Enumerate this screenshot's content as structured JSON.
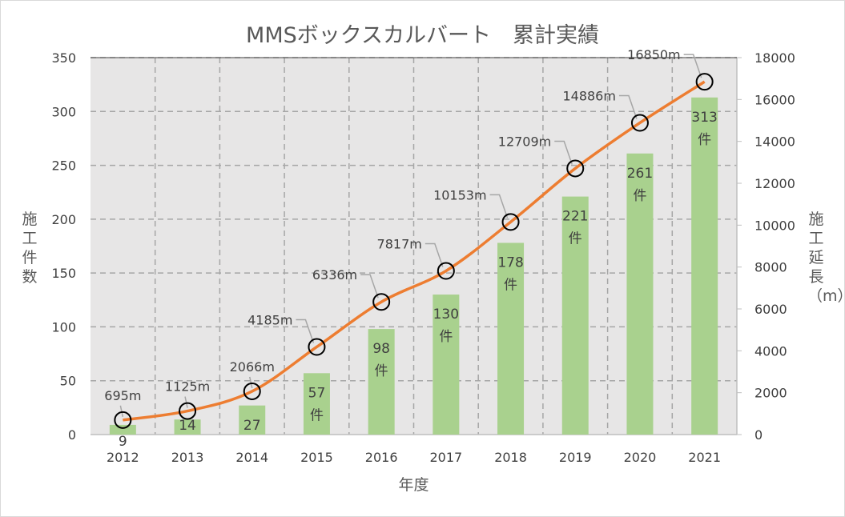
{
  "chart_data": {
    "type": "bar+line",
    "title": "MMSボックスカルバート　累計実績",
    "xlabel": "年度",
    "ylabel_left": "施工件数",
    "ylabel_right": "施工延長（m）",
    "categories": [
      "2012",
      "2013",
      "2014",
      "2015",
      "2016",
      "2017",
      "2018",
      "2019",
      "2020",
      "2021"
    ],
    "ylim_left": [
      0,
      350
    ],
    "yticks_left": [
      0,
      50,
      100,
      150,
      200,
      250,
      300,
      350
    ],
    "ylim_right": [
      0,
      18000
    ],
    "yticks_right": [
      0,
      2000,
      4000,
      6000,
      8000,
      10000,
      12000,
      14000,
      16000,
      18000
    ],
    "grid": true,
    "series": [
      {
        "axis": "left",
        "type": "bar",
        "color": "#a9d18e",
        "values": [
          9,
          14,
          27,
          57,
          98,
          130,
          178,
          221,
          261,
          313
        ],
        "labels": [
          [
            "9"
          ],
          [
            "14"
          ],
          [
            "27"
          ],
          [
            "57",
            "件"
          ],
          [
            "98",
            "件"
          ],
          [
            "130",
            "件"
          ],
          [
            "178",
            "件"
          ],
          [
            "221",
            "件"
          ],
          [
            "261",
            "件"
          ],
          [
            "313",
            "件"
          ]
        ]
      },
      {
        "axis": "right",
        "type": "line",
        "color": "#ed7d31",
        "marker": "open-circle",
        "values": [
          695,
          1125,
          2066,
          4185,
          6336,
          7817,
          10153,
          12709,
          14886,
          16850
        ],
        "labels": [
          "695m",
          "1125m",
          "2066m",
          "4185m",
          "6336m",
          "7817m",
          "10153m",
          "12709m",
          "14886m",
          "16850m"
        ]
      }
    ],
    "plot_background": "#e7e6e6"
  }
}
